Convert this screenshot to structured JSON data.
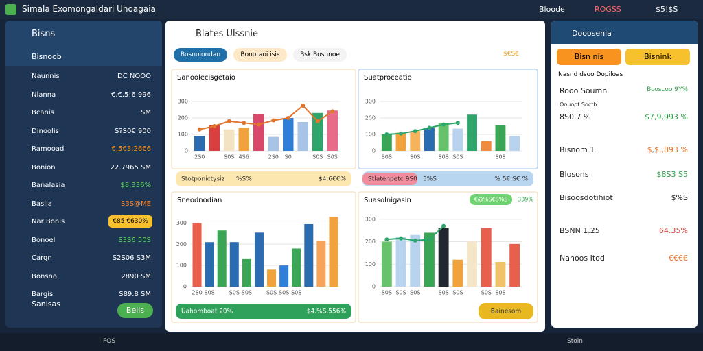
{
  "topbar": {
    "title": "Simala Exomongaldari Uhoagaia",
    "user1": "Bloode",
    "user2": "ROGSS",
    "user3": "$5!$S"
  },
  "sidebar": {
    "title": "Bisns",
    "active": "Bisnoob",
    "items": [
      {
        "label": "Naunnis",
        "value": "DC NOOO"
      },
      {
        "label": "Nlanna",
        "value": "€,€,5!6 996"
      },
      {
        "label": "Bcanis",
        "value": "SM"
      },
      {
        "label": "Dinoolis",
        "value": "S?S0€ 900"
      },
      {
        "label": "Ramooad",
        "value": "€,5€3:26€6"
      },
      {
        "label": "Bonion",
        "value": "22.7965 SM"
      },
      {
        "label": "Banalasia",
        "value": "$8,336%"
      },
      {
        "label": "Basila",
        "value": "S3S@ME"
      },
      {
        "label": "Nar Bonis",
        "value": "€85 €630%"
      },
      {
        "label": "Bonoel",
        "value": "S3S6 50S"
      },
      {
        "label": "Cargn",
        "value": "S2S06 S3M"
      },
      {
        "label": "Bonsno",
        "value": "2890 SM"
      },
      {
        "label": "Bargis",
        "value": "S89.8 SM"
      }
    ],
    "footer": "Sanisas",
    "button": "Belis"
  },
  "main": {
    "title": "Blates Ulssnie",
    "tabs": [
      "Bosnoiondan",
      "Bonotaoi isis",
      "Bsk Bosnnoe"
    ],
    "tag": "$€S€"
  },
  "charts": [
    {
      "title": "Sanoolecisgetaio",
      "ylim": [
        0,
        300
      ],
      "yticks": [
        0,
        100,
        200,
        300
      ],
      "categories": [
        "2S0",
        null,
        "S0S",
        "4S6",
        null,
        "2S0",
        "S0",
        null,
        "S0S",
        "S0S"
      ],
      "values": [
        90,
        155,
        130,
        140,
        225,
        85,
        200,
        175,
        230,
        245
      ],
      "colors": [
        "#2b6cb0",
        "#d93f3f",
        "#f3e3c3",
        "#f0a33c",
        "#d9486a",
        "#a7c4e6",
        "#2f7ed8",
        "#a7c4e6",
        "#2ea56a",
        "#e86b8a"
      ],
      "line_values": [
        130,
        150,
        180,
        170,
        160,
        185,
        200,
        275,
        180,
        240
      ],
      "line_color": "#e0762c",
      "footer": {
        "left": "Stotponictysiz",
        "mid": "%S%",
        "right": "$4.6€€%"
      }
    },
    {
      "title": "Suatproceatio",
      "ylim": [
        0,
        300
      ],
      "yticks": [
        0,
        100,
        200,
        300
      ],
      "categories": [
        "S0S",
        null,
        "S0S",
        null,
        "S0S",
        "S0S",
        null,
        null,
        "S0S",
        null
      ],
      "values": [
        100,
        110,
        120,
        140,
        170,
        135,
        220,
        60,
        155,
        90
      ],
      "colors": [
        "#3aa655",
        "#f0a33c",
        "#f5b35a",
        "#2b6cb0",
        "#67c26b",
        "#b8d3ee",
        "#2ea56a",
        "#f08a3c",
        "#3aa655",
        "#b8d3ee"
      ],
      "line_values": [
        100,
        105,
        120,
        140,
        160,
        170,
        null,
        null,
        null,
        null
      ],
      "line_color": "#2ea56a",
      "footer": {
        "left": "Stlatenpetc 9S0",
        "mid": "3%S",
        "right": "% 5€.S€ %"
      }
    },
    {
      "title": "Sneodnodian",
      "ylim": [
        0,
        350
      ],
      "yticks": [
        0,
        100,
        200,
        300
      ],
      "categories": [
        "2S0",
        "S0S",
        null,
        "S0S",
        "S0S",
        null,
        "S0S",
        "S0S",
        "S0S",
        null,
        null,
        null
      ],
      "values": [
        300,
        210,
        265,
        210,
        130,
        255,
        80,
        100,
        180,
        295,
        215,
        330
      ],
      "colors": [
        "#e8604c",
        "#2b6cb0",
        "#3aa655",
        "#2b6cb0",
        "#3aa655",
        "#2b6cb0",
        "#f0a33c",
        "#2f7ed8",
        "#3aa655",
        "#2b6cb0",
        "#f6a45c",
        "#f0a33c"
      ],
      "footer": {
        "left": "Uahomboat 20%",
        "right": "$4.%S.556%"
      }
    },
    {
      "title": "Suasolnigasin",
      "ylim": [
        0,
        330
      ],
      "yticks": [
        0,
        100,
        200,
        300
      ],
      "categories": [
        "S0S",
        "S0S",
        "S0S",
        null,
        "S0S",
        "S0S",
        null,
        "S0S",
        "S0S",
        null
      ],
      "values": [
        200,
        220,
        230,
        240,
        260,
        120,
        200,
        260,
        110,
        190
      ],
      "colors": [
        "#67c26b",
        "#b8d3ee",
        "#b8d3ee",
        "#3aa655",
        "#222831",
        "#f0a33c",
        "#f5e6c8",
        "#e8604c",
        "#f0c36a",
        "#e8604c"
      ],
      "line_values": [
        210,
        215,
        205,
        210,
        270,
        null,
        null,
        null,
        null,
        null
      ],
      "line_color": "#2ea56a",
      "header": {
        "pill": "€@%S€S%S",
        "value": "339%"
      },
      "button": "Bainesom"
    }
  ],
  "rightpanel": {
    "title": "Dooosenia",
    "buttons": [
      "Bisn nis",
      "Bisnink"
    ],
    "subtitle": "Nasnd dsoo Dopiloas",
    "rows": [
      {
        "label": "Rooo Soumn",
        "value": "Bcoscoo 9Y%"
      },
      {
        "label": "Oouopt Soctb",
        "value": ""
      },
      {
        "label": "8S0.7 %",
        "value": "$7,9,993 %"
      },
      {
        "label": "Bisnom 1",
        "value": "$,$,,893 %"
      },
      {
        "label": "Blosons",
        "value": "$8S3 S5"
      },
      {
        "label": "Bisoosdotihiot",
        "value": "$%S"
      },
      {
        "label": "BSNN 1.25",
        "value": "64.35%"
      },
      {
        "label": "Nanoos Itod",
        "value": "€€€€"
      }
    ]
  },
  "taskbar": {
    "search": "FOS",
    "right": "Stoin"
  }
}
